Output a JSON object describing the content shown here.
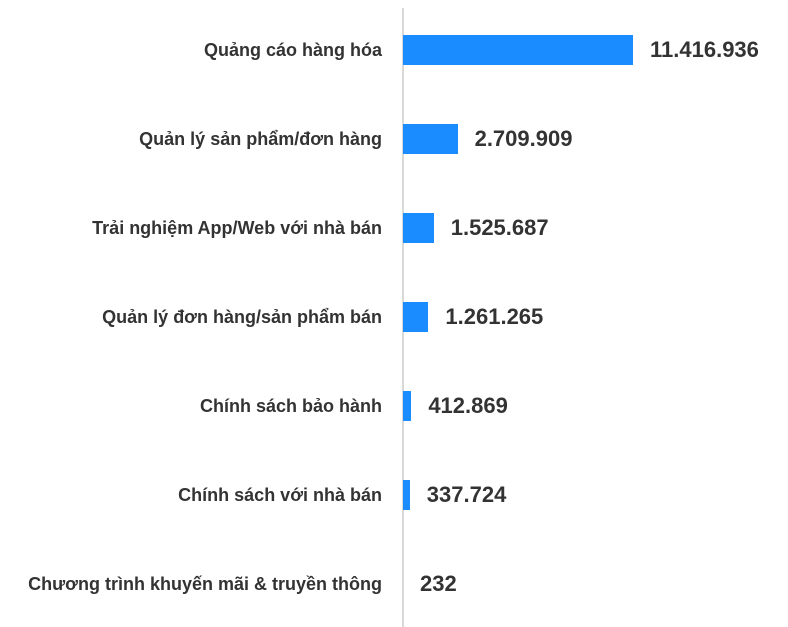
{
  "chart_data": {
    "type": "bar",
    "orientation": "horizontal",
    "categories": [
      "Quảng cáo hàng hóa",
      "Quản lý sản phẩm/đơn hàng",
      "Trải nghiệm App/Web với nhà bán",
      "Quản lý đơn hàng/sản phẩm bán",
      "Chính sách bảo hành",
      "Chính sách với nhà bán",
      "Chương trình khuyến mãi & truyền thông"
    ],
    "values": [
      11416936,
      2709909,
      1525687,
      1261265,
      412869,
      337724,
      232
    ],
    "value_labels": [
      "11.416.936",
      "2.709.909",
      "1.525.687",
      "1.261.265",
      "412.869",
      "337.724",
      "232"
    ],
    "color": "#1a8cff"
  }
}
